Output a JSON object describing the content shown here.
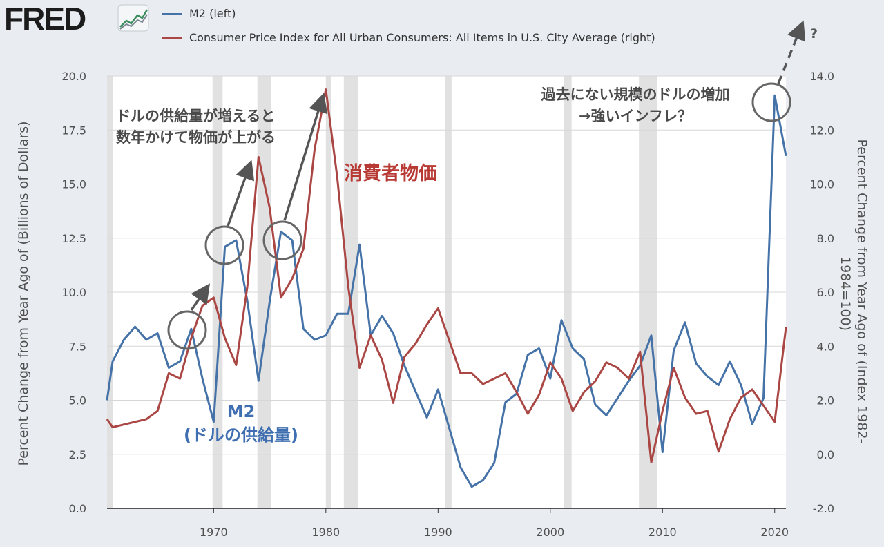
{
  "brand": {
    "logo_text": "FRED",
    "logo_icon": "chart-line-icon"
  },
  "legend": [
    {
      "label": "M2 (left)",
      "color": "#4572a7"
    },
    {
      "label": "Consumer Price Index for All Urban Consumers: All Items in U.S. City Average (right)",
      "color": "#aa4643"
    }
  ],
  "chart_data": {
    "type": "line",
    "ylabel_left": "Percent Change from Year Ago of (Billions of Dollars)",
    "ylabel_right": "Percent Change from Year Ago of (Index 1982-1984=100)",
    "ylim_left": [
      0,
      20
    ],
    "ylim_right": [
      -2,
      14
    ],
    "xlim": [
      1960.5,
      2021
    ],
    "x_ticks": [
      "1970",
      "1980",
      "1990",
      "2000",
      "2010",
      "2020"
    ],
    "y_ticks_left": [
      "0.0",
      "2.5",
      "5.0",
      "7.5",
      "10.0",
      "12.5",
      "15.0",
      "17.5",
      "20.0"
    ],
    "y_ticks_right": [
      "-2.0",
      "0.0",
      "2.0",
      "4.0",
      "6.0",
      "8.0",
      "10.0",
      "12.0",
      "14.0"
    ],
    "grid": true,
    "recessions": [
      [
        1960.5,
        1961.0
      ],
      [
        1969.9,
        1970.8
      ],
      [
        1973.9,
        1975.1
      ],
      [
        1980.0,
        1980.5
      ],
      [
        1981.6,
        1982.9
      ],
      [
        1990.6,
        1991.2
      ],
      [
        2001.2,
        2001.9
      ],
      [
        2007.9,
        2009.5
      ]
    ],
    "series": [
      {
        "name": "M2",
        "axis": "left",
        "color": "#4572a7",
        "x": [
          1960.5,
          1961,
          1962,
          1963,
          1964,
          1965,
          1966,
          1967,
          1968,
          1969,
          1970,
          1971,
          1972,
          1973,
          1974,
          1975,
          1976,
          1977,
          1978,
          1979,
          1980,
          1981,
          1982,
          1983,
          1984,
          1985,
          1986,
          1987,
          1988,
          1989,
          1990,
          1991,
          1992,
          1993,
          1994,
          1995,
          1996,
          1997,
          1998,
          1999,
          2000,
          2001,
          2002,
          2003,
          2004,
          2005,
          2006,
          2007,
          2008,
          2009,
          2010,
          2011,
          2012,
          2013,
          2014,
          2015,
          2016,
          2017,
          2018,
          2019,
          2020,
          2021
        ],
        "values": [
          5.0,
          6.8,
          7.8,
          8.4,
          7.8,
          8.1,
          6.5,
          6.8,
          8.3,
          6.0,
          4.0,
          12.1,
          12.4,
          9.6,
          5.9,
          9.6,
          12.8,
          12.4,
          8.3,
          7.8,
          8.0,
          9.0,
          9.0,
          12.2,
          8.0,
          8.9,
          8.1,
          6.6,
          5.4,
          4.2,
          5.5,
          3.7,
          1.9,
          1.0,
          1.3,
          2.1,
          4.9,
          5.3,
          7.1,
          7.4,
          6.0,
          8.7,
          7.4,
          6.9,
          4.8,
          4.3,
          5.1,
          5.9,
          6.6,
          8.0,
          2.6,
          7.3,
          8.6,
          6.7,
          6.1,
          5.7,
          6.8,
          5.7,
          3.9,
          5.1,
          19.1,
          16.3
        ]
      },
      {
        "name": "Consumer Price Index for All Urban Consumers: All Items in U.S. City Average",
        "axis": "right",
        "color": "#aa4643",
        "x": [
          1960.5,
          1961,
          1962,
          1963,
          1964,
          1965,
          1966,
          1967,
          1968,
          1969,
          1970,
          1971,
          1972,
          1973,
          1974,
          1975,
          1976,
          1977,
          1978,
          1979,
          1980,
          1981,
          1982,
          1983,
          1984,
          1985,
          1986,
          1987,
          1988,
          1989,
          1990,
          1991,
          1992,
          1993,
          1994,
          1995,
          1996,
          1997,
          1998,
          1999,
          2000,
          2001,
          2002,
          2003,
          2004,
          2005,
          2006,
          2007,
          2008,
          2009,
          2010,
          2011,
          2012,
          2013,
          2014,
          2015,
          2016,
          2017,
          2018,
          2019,
          2020,
          2021
        ],
        "values": [
          1.3,
          1.0,
          1.1,
          1.2,
          1.3,
          1.6,
          3.0,
          2.8,
          4.3,
          5.5,
          5.8,
          4.3,
          3.3,
          6.2,
          11.0,
          9.1,
          5.8,
          6.5,
          7.6,
          11.3,
          13.5,
          10.3,
          6.2,
          3.2,
          4.4,
          3.5,
          1.9,
          3.6,
          4.1,
          4.8,
          5.4,
          4.2,
          3.0,
          3.0,
          2.6,
          2.8,
          3.0,
          2.3,
          1.5,
          2.2,
          3.4,
          2.8,
          1.6,
          2.3,
          2.7,
          3.4,
          3.2,
          2.8,
          3.8,
          -0.3,
          1.6,
          3.2,
          2.1,
          1.5,
          1.6,
          0.1,
          1.3,
          2.1,
          2.4,
          1.8,
          1.2,
          4.7
        ]
      }
    ],
    "annotations": {
      "supply_arrow_text": [
        "ドルの供給量が増えると",
        "数年かけて物価が上がる"
      ],
      "cpi_label": "消費者物価",
      "m2_label": [
        "M2",
        "(ドルの供給量)"
      ],
      "record_text": [
        "過去にない規模のドルの増加",
        "→強いインフレ？"
      ],
      "question": "?"
    }
  }
}
